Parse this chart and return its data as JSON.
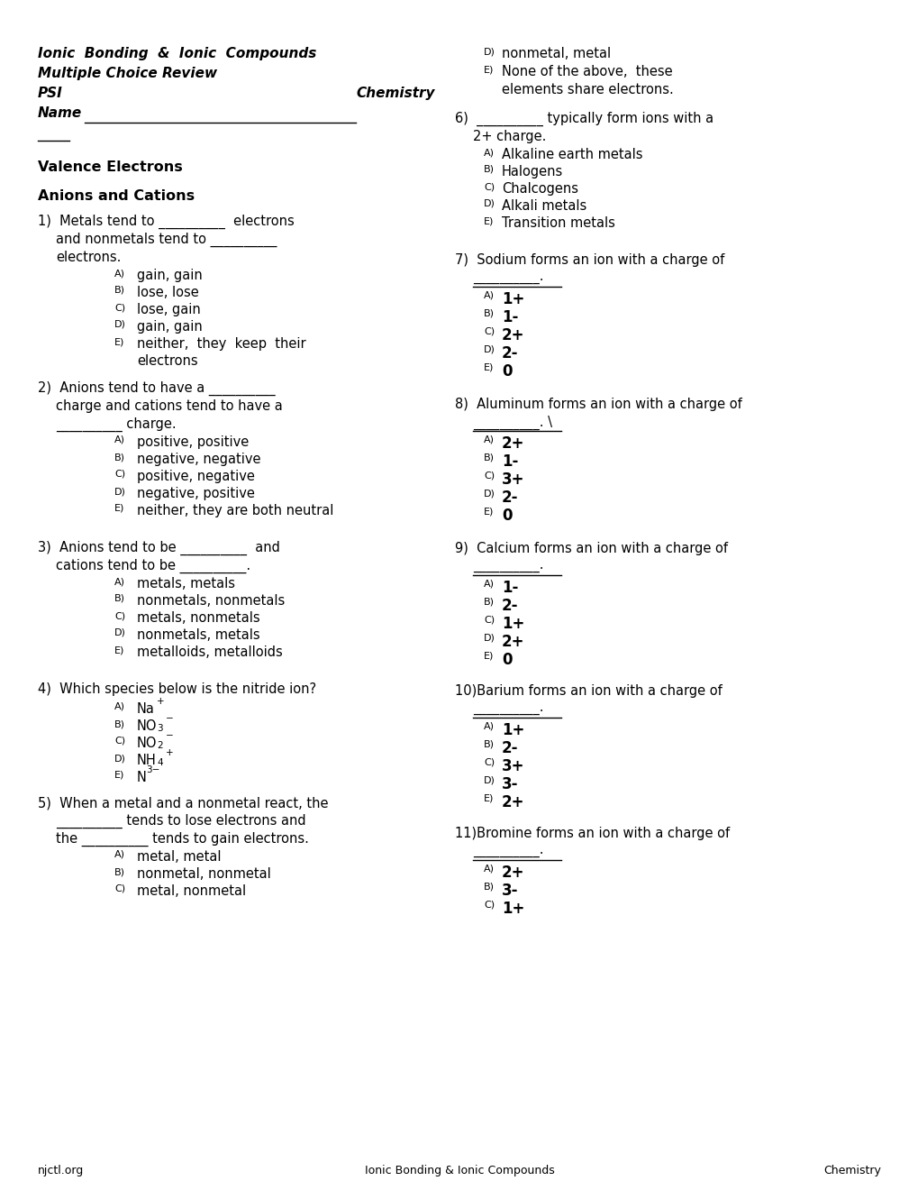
{
  "bg_color": "#ffffff",
  "text_color": "#000000",
  "footer_left": "njctl.org",
  "footer_center": "Ionic Bonding & Ionic Compounds",
  "footer_right": "Chemistry"
}
